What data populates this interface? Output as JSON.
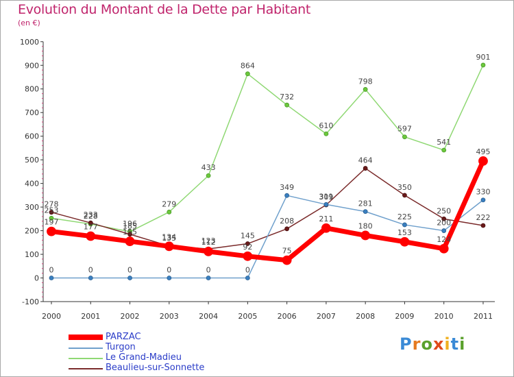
{
  "header": {
    "title": "Evolution du Montant de la Dette par Habitant",
    "unit": "(en €)"
  },
  "logo": {
    "letters": [
      "P",
      "r",
      "o",
      "x",
      "i",
      "t",
      "i"
    ],
    "colors": [
      "#3a8ad6",
      "#e57a20",
      "#5aa02c",
      "#e04a1a",
      "#f0b020",
      "#3a8ad6",
      "#5aa02c"
    ]
  },
  "chart_data": {
    "type": "line",
    "title": "Evolution du Montant de la Dette par Habitant",
    "subtitle": "(en €)",
    "xlabel": "",
    "ylabel": "",
    "ylim": [
      -100,
      1000
    ],
    "yticks": [
      -100,
      0,
      100,
      200,
      300,
      400,
      500,
      600,
      700,
      800,
      900,
      1000
    ],
    "categories": [
      "2000",
      "2001",
      "2002",
      "2003",
      "2004",
      "2005",
      "2006",
      "2007",
      "2008",
      "2009",
      "2010",
      "2011"
    ],
    "grid": false,
    "legend": "bottom-left",
    "series": [
      {
        "name": "PARZAC",
        "color": "#ff0000",
        "values": [
          197,
          177,
          155,
          134,
          112,
          92,
          75,
          211,
          180,
          153,
          124,
          495
        ]
      },
      {
        "name": "Turgon",
        "color": "#6fa0cc",
        "values": [
          0,
          0,
          0,
          0,
          0,
          0,
          349,
          311,
          281,
          225,
          200,
          330
        ]
      },
      {
        "name": "Le Grand-Madieu",
        "color": "#8fd873",
        "values": [
          253,
          228,
          196,
          279,
          433,
          864,
          732,
          610,
          798,
          597,
          541,
          901
        ]
      },
      {
        "name": "Beaulieu-sur-Sonnette",
        "color": "#7a2a2a",
        "values": [
          278,
          233,
          185,
          135,
          123,
          145,
          208,
          309,
          464,
          350,
          250,
          222
        ]
      }
    ]
  }
}
